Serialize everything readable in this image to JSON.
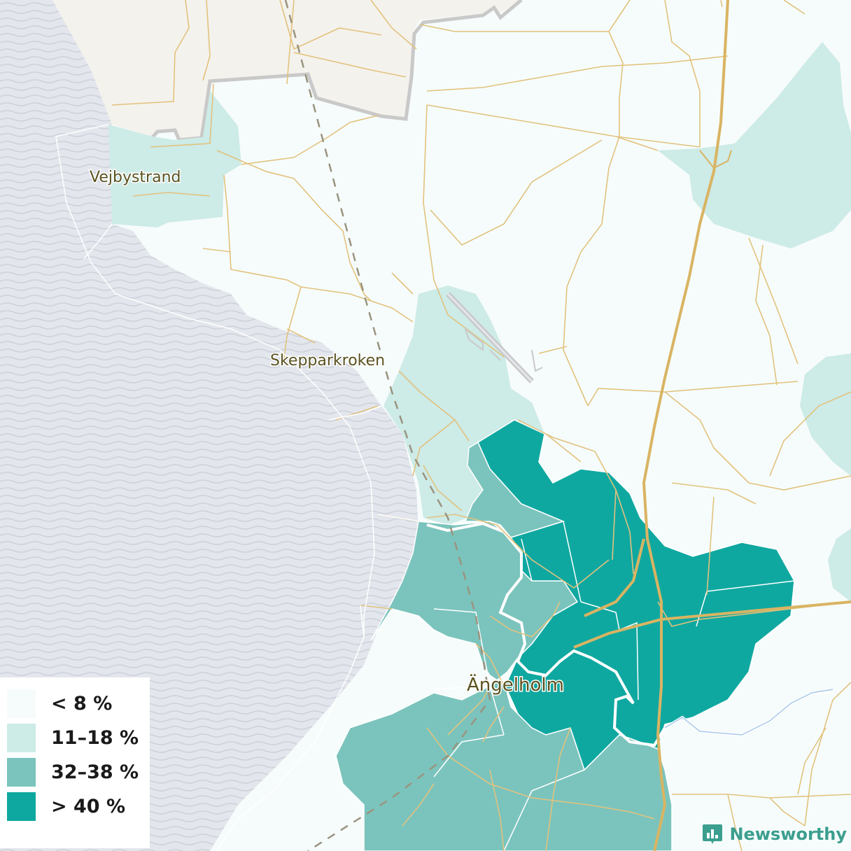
{
  "map": {
    "places": [
      {
        "name": "Vejbystrand"
      },
      {
        "name": "Skepparkroken"
      },
      {
        "name": "Ängelholm"
      }
    ]
  },
  "legend": {
    "items": [
      {
        "label": "< 8 %",
        "color": "#f6fcfb"
      },
      {
        "label": "11–18 %",
        "color": "#cdebe7"
      },
      {
        "label": "32–38 %",
        "color": "#7bc4bd"
      },
      {
        "label": "> 40 %",
        "color": "#0fa8a0"
      }
    ]
  },
  "brand": {
    "name": "Newsworthy",
    "color": "#3b9e8e",
    "icon": "bar-chart-icon"
  },
  "colors": {
    "sea": "#e3e6ec",
    "sea_wave": "#cdd1da",
    "other_region": "#f4f2ec",
    "road": "#e2c27e",
    "highway": "#d9b463",
    "border": "#c9c9c9"
  }
}
